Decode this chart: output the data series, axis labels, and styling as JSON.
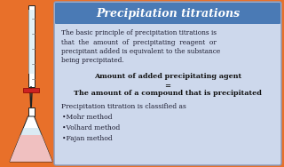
{
  "title": "Precipitation titrations",
  "title_bg": "#4a7ab5",
  "title_color": "white",
  "outer_bg": "#e8702a",
  "inner_bg": "#cdd8ec",
  "inner_border": "#8899bb",
  "body_text1_lines": [
    "The basic principle of precipitation titrations is",
    "that  the  amount  of  precipitating  reagent  or",
    "precipitant added is equivalent to the substance",
    "being precipitated."
  ],
  "bold_line1": "Amount of added precipitating agent",
  "equals": "=",
  "bold_line2": "The amount of a compound that is precipitated",
  "classified_text": "Precipitation titration is classified as",
  "bullets": [
    "•Mohr method",
    "•Volhard method",
    "•Fajan method"
  ],
  "text_color": "#1a1a2e",
  "bold_color": "#111111",
  "burette_color": "#dddddd",
  "flask_outline": "#222222",
  "solution_color": "#f0c0c0",
  "liquid_color": "#d0e8f0",
  "stopcock_color": "#cc2222"
}
